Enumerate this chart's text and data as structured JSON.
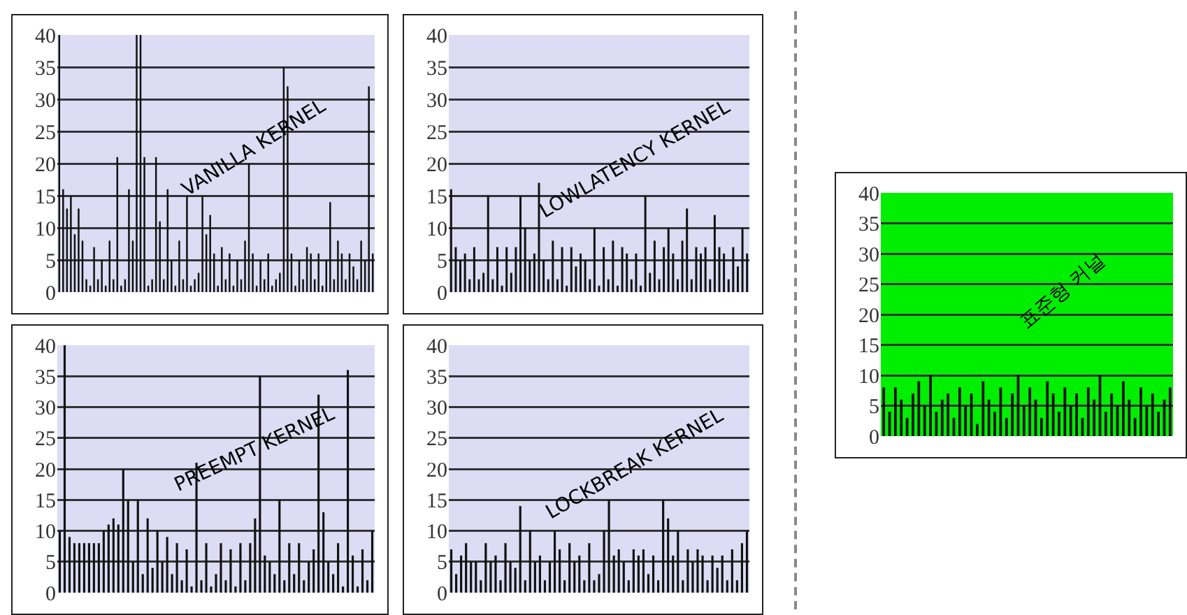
{
  "chart_data": [
    {
      "type": "bar",
      "title": "VANILLA KERNEL",
      "categories": [
        null,
        null,
        null,
        null,
        null,
        null,
        null,
        null,
        null,
        null,
        null,
        null,
        null,
        null,
        null,
        null,
        null,
        null,
        null,
        null,
        null,
        null,
        null,
        null,
        null,
        null,
        null,
        null,
        null,
        null,
        null,
        null,
        null,
        null,
        null,
        null,
        null,
        null,
        null,
        null,
        null,
        null,
        null,
        null,
        null,
        null,
        null,
        null,
        null,
        null,
        null,
        null,
        null,
        null,
        null,
        null,
        null,
        null,
        null,
        null,
        null,
        null,
        null,
        null,
        null,
        null,
        null,
        null,
        null,
        null,
        null,
        null,
        null,
        null,
        null,
        null,
        null,
        null,
        null,
        null,
        null,
        null
      ],
      "values": [
        40,
        16,
        13,
        15,
        9,
        13,
        8,
        2,
        1,
        7,
        2,
        5,
        1,
        8,
        2,
        21,
        1,
        2,
        16,
        8,
        40,
        40,
        21,
        1,
        2,
        21,
        11,
        2,
        16,
        5,
        1,
        8,
        2,
        15,
        1,
        2,
        3,
        15,
        9,
        12,
        6,
        1,
        7,
        2,
        6,
        1,
        5,
        2,
        8,
        20,
        6,
        1,
        5,
        2,
        6,
        1,
        2,
        3,
        35,
        32,
        6,
        1,
        5,
        2,
        7,
        6,
        2,
        6,
        1,
        5,
        14,
        2,
        8,
        6,
        2,
        6,
        4,
        2,
        8,
        5,
        32,
        6
      ],
      "color": "#111111",
      "ylim": [
        0,
        40
      ],
      "yticks": [
        0,
        5,
        10,
        15,
        20,
        25,
        30,
        35,
        40
      ],
      "grid": "y",
      "tick_labels": "y"
    },
    {
      "type": "bar",
      "title": "LOWLATENCY KERNEL",
      "categories": [
        null,
        null,
        null,
        null,
        null,
        null,
        null,
        null,
        null,
        null,
        null,
        null,
        null,
        null,
        null,
        null,
        null,
        null,
        null,
        null,
        null,
        null,
        null,
        null,
        null,
        null,
        null,
        null,
        null,
        null,
        null,
        null,
        null,
        null,
        null,
        null,
        null,
        null,
        null,
        null,
        null,
        null,
        null,
        null,
        null,
        null,
        null,
        null,
        null,
        null,
        null,
        null,
        null,
        null,
        null,
        null,
        null,
        null,
        null,
        null,
        null,
        null,
        null,
        null,
        null
      ],
      "values": [
        16,
        7,
        5,
        6,
        2,
        7,
        2,
        3,
        15,
        2,
        7,
        1,
        7,
        3,
        7,
        15,
        10,
        5,
        6,
        17,
        5,
        2,
        8,
        2,
        7,
        1,
        7,
        4,
        6,
        5,
        2,
        10,
        1,
        7,
        2,
        8,
        1,
        7,
        6,
        2,
        6,
        1,
        15,
        3,
        8,
        2,
        7,
        10,
        6,
        2,
        8,
        13,
        2,
        7,
        6,
        7,
        2,
        12,
        7,
        6,
        2,
        7,
        4,
        10,
        6
      ],
      "color": "#111111",
      "ylim": [
        0,
        40
      ],
      "yticks": [
        0,
        5,
        10,
        15,
        20,
        25,
        30,
        35,
        40
      ],
      "grid": "y",
      "tick_labels": "y"
    },
    {
      "type": "bar",
      "title": "PREEMPT KERNEL",
      "categories": [
        null,
        null,
        null,
        null,
        null,
        null,
        null,
        null,
        null,
        null,
        null,
        null,
        null,
        null,
        null,
        null,
        null,
        null,
        null,
        null,
        null,
        null,
        null,
        null,
        null,
        null,
        null,
        null,
        null,
        null,
        null,
        null,
        null,
        null,
        null,
        null,
        null,
        null,
        null,
        null,
        null,
        null,
        null,
        null,
        null,
        null,
        null,
        null,
        null,
        null,
        null,
        null,
        null,
        null,
        null,
        null,
        null,
        null,
        null,
        null,
        null,
        null,
        null,
        null,
        null
      ],
      "values": [
        10,
        40,
        9,
        8,
        8,
        8,
        8,
        8,
        8,
        10,
        11,
        12,
        11,
        20,
        15,
        5,
        15,
        3,
        12,
        4,
        10,
        5,
        9,
        3,
        8,
        2,
        7,
        1,
        21,
        2,
        8,
        1,
        3,
        8,
        2,
        7,
        1,
        8,
        2,
        8,
        12,
        35,
        6,
        5,
        3,
        15,
        2,
        8,
        3,
        8,
        2,
        5,
        7,
        32,
        13,
        5,
        3,
        8,
        1,
        36,
        6,
        1,
        7,
        2,
        10
      ],
      "color": "#111111",
      "ylim": [
        0,
        40
      ],
      "yticks": [
        0,
        5,
        10,
        15,
        20,
        25,
        30,
        35,
        40
      ],
      "grid": "y",
      "tick_labels": "y"
    },
    {
      "type": "bar",
      "title": "LOCKBREAK KERNEL",
      "categories": [
        null,
        null,
        null,
        null,
        null,
        null,
        null,
        null,
        null,
        null,
        null,
        null,
        null,
        null,
        null,
        null,
        null,
        null,
        null,
        null,
        null,
        null,
        null,
        null,
        null,
        null,
        null,
        null,
        null,
        null,
        null,
        null,
        null,
        null,
        null,
        null,
        null,
        null,
        null,
        null,
        null,
        null,
        null,
        null,
        null,
        null,
        null,
        null,
        null,
        null,
        null,
        null,
        null,
        null,
        null,
        null,
        null,
        null,
        null,
        null,
        null
      ],
      "values": [
        7,
        3,
        6,
        8,
        5,
        5,
        2,
        8,
        5,
        6,
        2,
        8,
        5,
        4,
        14,
        2,
        10,
        5,
        6,
        2,
        5,
        10,
        7,
        2,
        8,
        5,
        6,
        2,
        8,
        2,
        3,
        10,
        15,
        6,
        7,
        5,
        2,
        7,
        6,
        7,
        3,
        6,
        2,
        15,
        12,
        6,
        10,
        2,
        7,
        5,
        7,
        6,
        2,
        6,
        4,
        6,
        2,
        7,
        2,
        8,
        10
      ],
      "color": "#111111",
      "ylim": [
        0,
        40
      ],
      "yticks": [
        0,
        5,
        10,
        15,
        20,
        25,
        30,
        35,
        40
      ],
      "grid": "y",
      "tick_labels": "y"
    },
    {
      "type": "bar",
      "title": "표준형 커널",
      "categories": [
        null,
        null,
        null,
        null,
        null,
        null,
        null,
        null,
        null,
        null,
        null,
        null,
        null,
        null,
        null,
        null,
        null,
        null,
        null,
        null,
        null,
        null,
        null,
        null,
        null,
        null,
        null,
        null,
        null,
        null,
        null,
        null,
        null,
        null,
        null,
        null,
        null,
        null,
        null,
        null,
        null,
        null,
        null,
        null,
        null,
        null,
        null,
        null,
        null,
        null
      ],
      "values": [
        8,
        4,
        8,
        6,
        3,
        7,
        9,
        5,
        10,
        4,
        6,
        7,
        3,
        8,
        5,
        7,
        2,
        9,
        6,
        4,
        8,
        3,
        7,
        10,
        5,
        8,
        6,
        3,
        9,
        7,
        4,
        8,
        5,
        7,
        3,
        8,
        6,
        10,
        4,
        7,
        5,
        9,
        6,
        3,
        8,
        5,
        7,
        4,
        6,
        8
      ],
      "color": "#111111",
      "ylim": [
        0,
        40
      ],
      "yticks": [
        0,
        5,
        10,
        15,
        20,
        25,
        30,
        35,
        40
      ],
      "grid": "y",
      "tick_labels": "y"
    }
  ]
}
